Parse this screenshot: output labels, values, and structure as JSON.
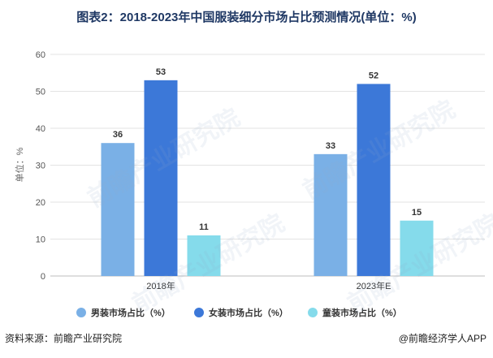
{
  "title": "图表2：2018-2023年中国服装细分市场占比预测情况(单位：%)",
  "chart_data": {
    "type": "bar",
    "title": "图表2：2018-2023年中国服装细分市场占比预测情况(单位：%)",
    "categories": [
      "2018年",
      "2023年E"
    ],
    "series": [
      {
        "name": "男装市场占比（%）",
        "values": [
          36,
          33
        ],
        "color": "#7ab0e6"
      },
      {
        "name": "女装市场占比（%）",
        "values": [
          53,
          52
        ],
        "color": "#3c78d8"
      },
      {
        "name": "童装市场占比（%）",
        "values": [
          11,
          15
        ],
        "color": "#85dbeb"
      }
    ],
    "ylabel": "单位：%",
    "ylim": [
      0,
      60
    ],
    "yticks": [
      0,
      10,
      20,
      30,
      40,
      50,
      60
    ],
    "grid": true,
    "legend": "bottom"
  },
  "footer": {
    "source": "资料来源：前瞻产业研究院",
    "brand": "@前瞻经济学人APP"
  },
  "watermark": "前瞻产业研究院"
}
